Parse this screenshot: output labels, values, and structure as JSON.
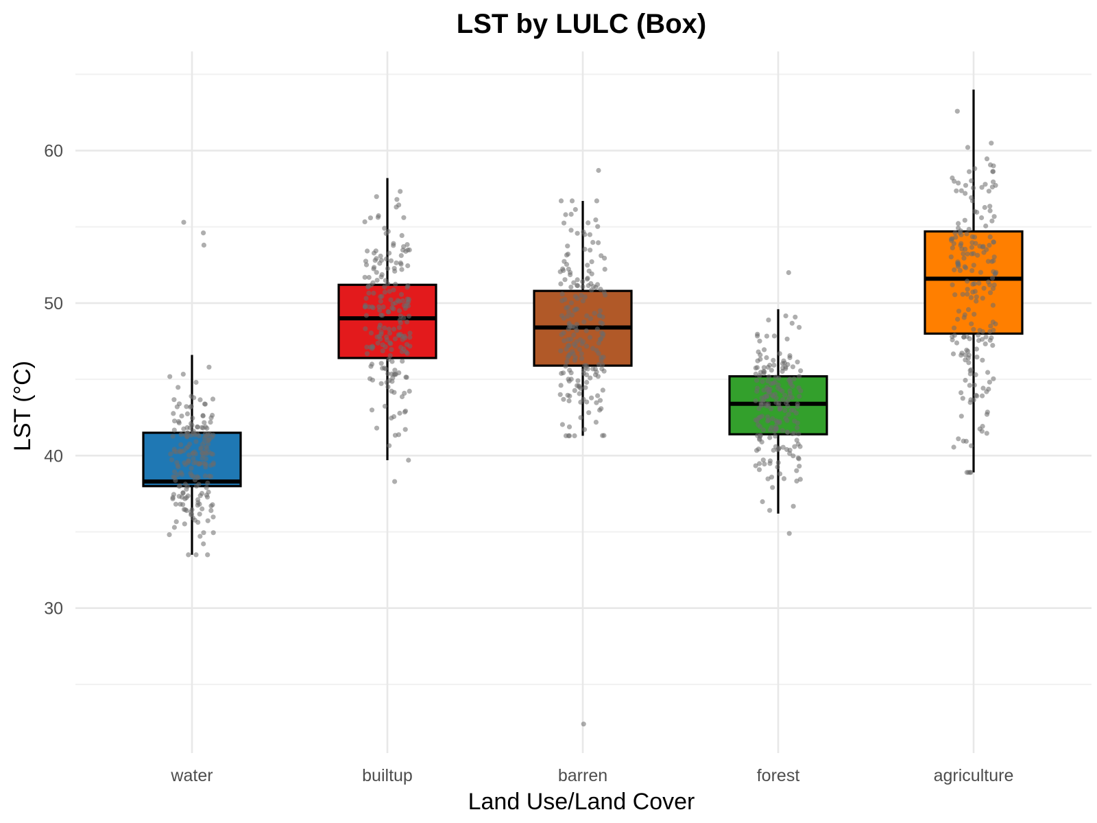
{
  "chart_data": {
    "type": "box",
    "title": "LST by LULC (Box)",
    "xlabel": "Land Use/Land Cover",
    "ylabel": "LST (°C)",
    "ylim": [
      20.5,
      66.5
    ],
    "y_ticks": [
      30,
      40,
      50,
      60
    ],
    "grid": true,
    "legend": "none",
    "categories": [
      "water",
      "builtup",
      "barren",
      "forest",
      "agriculture"
    ],
    "boxes": [
      {
        "category": "water",
        "color": "#1f78b4",
        "whisker_low": 33.5,
        "q1": 38.0,
        "median": 38.3,
        "q3": 41.5,
        "whisker_high": 46.6,
        "outliers": [
          54.6,
          55.3,
          53.8
        ],
        "n_points": 200
      },
      {
        "category": "builtup",
        "color": "#e31a1c",
        "whisker_low": 39.7,
        "q1": 46.4,
        "median": 49.0,
        "q3": 51.2,
        "whisker_high": 58.2,
        "outliers": [
          38.3
        ],
        "n_points": 200
      },
      {
        "category": "barren",
        "color": "#b15928",
        "whisker_low": 41.3,
        "q1": 45.9,
        "median": 48.4,
        "q3": 50.8,
        "whisker_high": 56.7,
        "outliers": [
          58.7,
          22.4
        ],
        "n_points": 200
      },
      {
        "category": "forest",
        "color": "#33a02c",
        "whisker_low": 36.2,
        "q1": 41.4,
        "median": 43.4,
        "q3": 45.2,
        "whisker_high": 49.6,
        "outliers": [
          52.0,
          34.9
        ],
        "n_points": 200
      },
      {
        "category": "agriculture",
        "color": "#ff7f00",
        "whisker_low": 38.9,
        "q1": 48.0,
        "median": 51.6,
        "q3": 54.7,
        "whisker_high": 64.0,
        "outliers": [
          38.9
        ],
        "n_points": 200
      }
    ]
  }
}
